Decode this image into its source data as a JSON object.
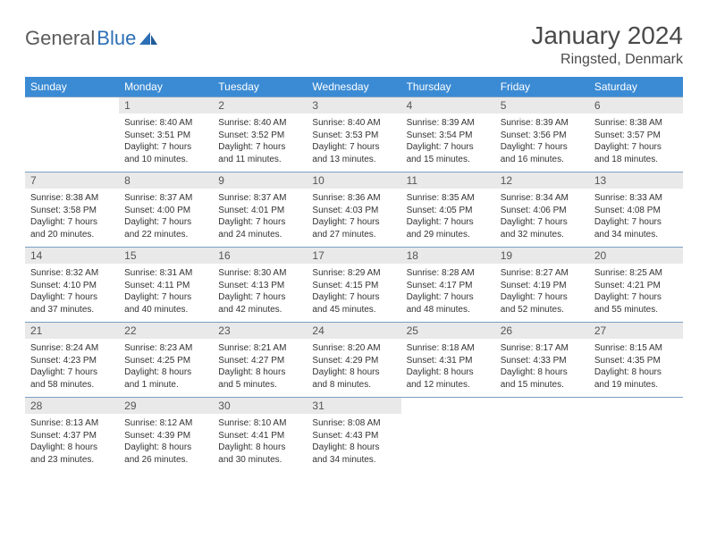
{
  "logo": {
    "general": "General",
    "blue": "Blue"
  },
  "title": "January 2024",
  "location": "Ringsted, Denmark",
  "weekday_headers": [
    "Sunday",
    "Monday",
    "Tuesday",
    "Wednesday",
    "Thursday",
    "Friday",
    "Saturday"
  ],
  "colors": {
    "header_bg": "#3b8bd4",
    "header_text": "#ffffff",
    "daynum_bg": "#e9e9e9",
    "rule": "#7aa0c4",
    "logo_gray": "#5a5a5a",
    "logo_blue": "#2d6fb5"
  },
  "weeks": [
    [
      null,
      {
        "n": "1",
        "sr": "Sunrise: 8:40 AM",
        "ss": "Sunset: 3:51 PM",
        "d1": "Daylight: 7 hours",
        "d2": "and 10 minutes."
      },
      {
        "n": "2",
        "sr": "Sunrise: 8:40 AM",
        "ss": "Sunset: 3:52 PM",
        "d1": "Daylight: 7 hours",
        "d2": "and 11 minutes."
      },
      {
        "n": "3",
        "sr": "Sunrise: 8:40 AM",
        "ss": "Sunset: 3:53 PM",
        "d1": "Daylight: 7 hours",
        "d2": "and 13 minutes."
      },
      {
        "n": "4",
        "sr": "Sunrise: 8:39 AM",
        "ss": "Sunset: 3:54 PM",
        "d1": "Daylight: 7 hours",
        "d2": "and 15 minutes."
      },
      {
        "n": "5",
        "sr": "Sunrise: 8:39 AM",
        "ss": "Sunset: 3:56 PM",
        "d1": "Daylight: 7 hours",
        "d2": "and 16 minutes."
      },
      {
        "n": "6",
        "sr": "Sunrise: 8:38 AM",
        "ss": "Sunset: 3:57 PM",
        "d1": "Daylight: 7 hours",
        "d2": "and 18 minutes."
      }
    ],
    [
      {
        "n": "7",
        "sr": "Sunrise: 8:38 AM",
        "ss": "Sunset: 3:58 PM",
        "d1": "Daylight: 7 hours",
        "d2": "and 20 minutes."
      },
      {
        "n": "8",
        "sr": "Sunrise: 8:37 AM",
        "ss": "Sunset: 4:00 PM",
        "d1": "Daylight: 7 hours",
        "d2": "and 22 minutes."
      },
      {
        "n": "9",
        "sr": "Sunrise: 8:37 AM",
        "ss": "Sunset: 4:01 PM",
        "d1": "Daylight: 7 hours",
        "d2": "and 24 minutes."
      },
      {
        "n": "10",
        "sr": "Sunrise: 8:36 AM",
        "ss": "Sunset: 4:03 PM",
        "d1": "Daylight: 7 hours",
        "d2": "and 27 minutes."
      },
      {
        "n": "11",
        "sr": "Sunrise: 8:35 AM",
        "ss": "Sunset: 4:05 PM",
        "d1": "Daylight: 7 hours",
        "d2": "and 29 minutes."
      },
      {
        "n": "12",
        "sr": "Sunrise: 8:34 AM",
        "ss": "Sunset: 4:06 PM",
        "d1": "Daylight: 7 hours",
        "d2": "and 32 minutes."
      },
      {
        "n": "13",
        "sr": "Sunrise: 8:33 AM",
        "ss": "Sunset: 4:08 PM",
        "d1": "Daylight: 7 hours",
        "d2": "and 34 minutes."
      }
    ],
    [
      {
        "n": "14",
        "sr": "Sunrise: 8:32 AM",
        "ss": "Sunset: 4:10 PM",
        "d1": "Daylight: 7 hours",
        "d2": "and 37 minutes."
      },
      {
        "n": "15",
        "sr": "Sunrise: 8:31 AM",
        "ss": "Sunset: 4:11 PM",
        "d1": "Daylight: 7 hours",
        "d2": "and 40 minutes."
      },
      {
        "n": "16",
        "sr": "Sunrise: 8:30 AM",
        "ss": "Sunset: 4:13 PM",
        "d1": "Daylight: 7 hours",
        "d2": "and 42 minutes."
      },
      {
        "n": "17",
        "sr": "Sunrise: 8:29 AM",
        "ss": "Sunset: 4:15 PM",
        "d1": "Daylight: 7 hours",
        "d2": "and 45 minutes."
      },
      {
        "n": "18",
        "sr": "Sunrise: 8:28 AM",
        "ss": "Sunset: 4:17 PM",
        "d1": "Daylight: 7 hours",
        "d2": "and 48 minutes."
      },
      {
        "n": "19",
        "sr": "Sunrise: 8:27 AM",
        "ss": "Sunset: 4:19 PM",
        "d1": "Daylight: 7 hours",
        "d2": "and 52 minutes."
      },
      {
        "n": "20",
        "sr": "Sunrise: 8:25 AM",
        "ss": "Sunset: 4:21 PM",
        "d1": "Daylight: 7 hours",
        "d2": "and 55 minutes."
      }
    ],
    [
      {
        "n": "21",
        "sr": "Sunrise: 8:24 AM",
        "ss": "Sunset: 4:23 PM",
        "d1": "Daylight: 7 hours",
        "d2": "and 58 minutes."
      },
      {
        "n": "22",
        "sr": "Sunrise: 8:23 AM",
        "ss": "Sunset: 4:25 PM",
        "d1": "Daylight: 8 hours",
        "d2": "and 1 minute."
      },
      {
        "n": "23",
        "sr": "Sunrise: 8:21 AM",
        "ss": "Sunset: 4:27 PM",
        "d1": "Daylight: 8 hours",
        "d2": "and 5 minutes."
      },
      {
        "n": "24",
        "sr": "Sunrise: 8:20 AM",
        "ss": "Sunset: 4:29 PM",
        "d1": "Daylight: 8 hours",
        "d2": "and 8 minutes."
      },
      {
        "n": "25",
        "sr": "Sunrise: 8:18 AM",
        "ss": "Sunset: 4:31 PM",
        "d1": "Daylight: 8 hours",
        "d2": "and 12 minutes."
      },
      {
        "n": "26",
        "sr": "Sunrise: 8:17 AM",
        "ss": "Sunset: 4:33 PM",
        "d1": "Daylight: 8 hours",
        "d2": "and 15 minutes."
      },
      {
        "n": "27",
        "sr": "Sunrise: 8:15 AM",
        "ss": "Sunset: 4:35 PM",
        "d1": "Daylight: 8 hours",
        "d2": "and 19 minutes."
      }
    ],
    [
      {
        "n": "28",
        "sr": "Sunrise: 8:13 AM",
        "ss": "Sunset: 4:37 PM",
        "d1": "Daylight: 8 hours",
        "d2": "and 23 minutes."
      },
      {
        "n": "29",
        "sr": "Sunrise: 8:12 AM",
        "ss": "Sunset: 4:39 PM",
        "d1": "Daylight: 8 hours",
        "d2": "and 26 minutes."
      },
      {
        "n": "30",
        "sr": "Sunrise: 8:10 AM",
        "ss": "Sunset: 4:41 PM",
        "d1": "Daylight: 8 hours",
        "d2": "and 30 minutes."
      },
      {
        "n": "31",
        "sr": "Sunrise: 8:08 AM",
        "ss": "Sunset: 4:43 PM",
        "d1": "Daylight: 8 hours",
        "d2": "and 34 minutes."
      },
      null,
      null,
      null
    ]
  ]
}
